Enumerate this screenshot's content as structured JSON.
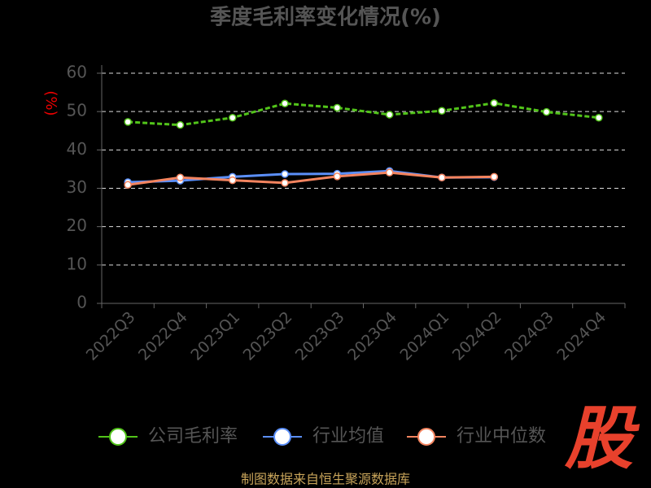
{
  "chart_data": {
    "type": "line",
    "title": "季度毛利率变化情况(%)",
    "y_label": "(%)",
    "categories": [
      "2022Q3",
      "2022Q4",
      "2023Q1",
      "2023Q2",
      "2023Q3",
      "2023Q4",
      "2024Q1",
      "2024Q2",
      "2024Q3",
      "2024Q4"
    ],
    "series": [
      {
        "name": "公司毛利率",
        "color": "#52c41a",
        "values": [
          47.3,
          46.5,
          48.4,
          52.1,
          51.0,
          49.2,
          50.2,
          52.2,
          49.9,
          48.4
        ]
      },
      {
        "name": "行业均值",
        "color": "#5b8ff9",
        "values": [
          31.6,
          32.0,
          33.0,
          33.7,
          33.8,
          34.5,
          32.8,
          32.9,
          null,
          null
        ]
      },
      {
        "name": "行业中位数",
        "color": "#f4845f",
        "values": [
          30.9,
          32.8,
          32.1,
          31.4,
          33.1,
          34.1,
          32.8,
          33.0,
          null,
          null
        ]
      }
    ],
    "ylim": [
      0,
      60
    ],
    "yticks": [
      0,
      10,
      20,
      30,
      40,
      50,
      60
    ],
    "grid": true,
    "source": "制图数据来自恒生聚源数据库",
    "logo": "股"
  }
}
